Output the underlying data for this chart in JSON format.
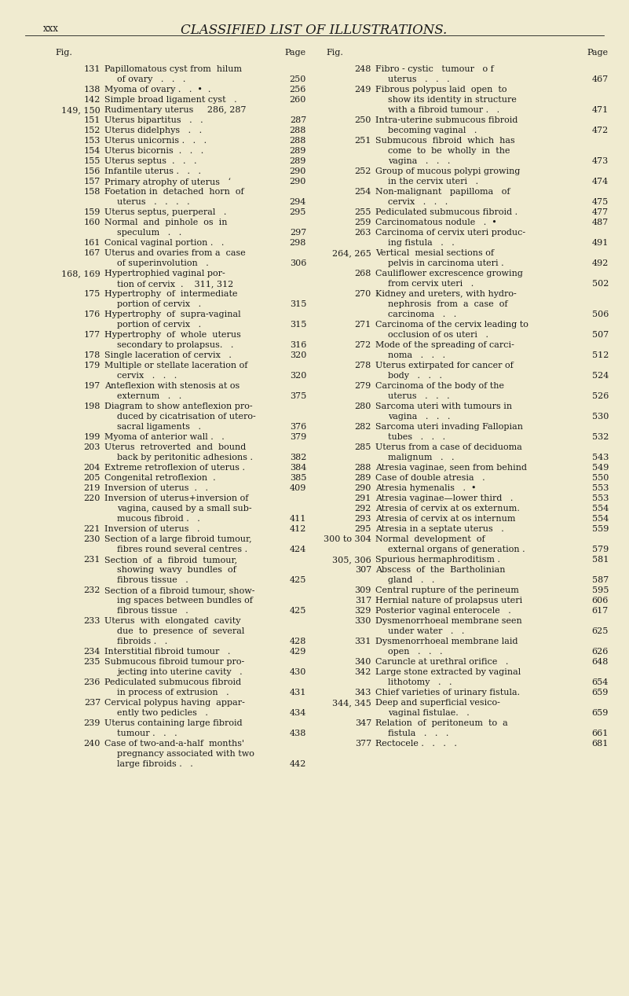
{
  "bg_color": "#f0ebd0",
  "header_left": "xxx",
  "header_center": "CLASSIFIED LIST OF ILLUSTRATIONS.",
  "text_color": "#1a1a1a",
  "col1_entries": [
    [
      "131",
      "Papillomatous cyst from  hilum\n    of ovary   .   .   . ",
      "250"
    ],
    [
      "138",
      "Myoma of ovary .   .  •  . ",
      "256"
    ],
    [
      "142",
      "Simple broad ligament cyst   . ",
      "260"
    ],
    [
      "149, 150",
      "Rudimentary uterus     286, 287",
      ""
    ],
    [
      "151",
      "Uterus bipartitus   .   . ",
      "287"
    ],
    [
      "152",
      "Uterus didelphys   .   . ",
      "288"
    ],
    [
      "153",
      "Uterus unicornis .   .   . ",
      "288"
    ],
    [
      "154",
      "Uterus bicornis  .   .   . ",
      "289"
    ],
    [
      "155",
      "Uterus septus  .   .   . ",
      "289"
    ],
    [
      "156",
      "Infantile uterus .   .   . ",
      "290"
    ],
    [
      "157",
      "Primary atrophy of uterus   ‘ ",
      "290"
    ],
    [
      "158",
      "Foetation in  detached  horn  of\n    uterus   .   .   .   . ",
      "294"
    ],
    [
      "159",
      "Uterus septus, puerperal   . ",
      "295"
    ],
    [
      "160",
      "Normal  and  pinhole  os  in\n    speculum   .   . ",
      "297"
    ],
    [
      "161",
      "Conical vaginal portion .   . ",
      "298"
    ],
    [
      "167",
      "Uterus and ovaries from a  case\n    of superinvolution   . ",
      "306"
    ],
    [
      "168, 169",
      "Hypertrophied vaginal por-\n    tion of cervix  .    311, 312",
      ""
    ],
    [
      "175",
      "Hypertrophy  of  intermediate\n    portion of cervix   . ",
      "315"
    ],
    [
      "176",
      "Hypertrophy  of  supra-vaginal\n    portion of cervix   . ",
      "315"
    ],
    [
      "177",
      "Hypertrophy  of  whole  uterus\n    secondary to prolapsus.   . ",
      "316"
    ],
    [
      "178",
      "Single laceration of cervix   . ",
      "320"
    ],
    [
      "179",
      "Multiple or stellate laceration of\n    cervix   .   .   . ",
      "320"
    ],
    [
      "197",
      "Anteflexion with stenosis at os\n    externum   .   . ",
      "375"
    ],
    [
      "198",
      "Diagram to show anteflexion pro-\n    duced by cicatrisation of utero-\n    sacral ligaments   . ",
      "376"
    ],
    [
      "199",
      "Myoma of anterior wall .   . ",
      "379"
    ],
    [
      "203",
      "Uterus  retroverted  and  bound\n    back by peritonitic adhesions . ",
      "382"
    ],
    [
      "204",
      "Extreme retroflexion of uterus . ",
      "384"
    ],
    [
      "205",
      "Congenital retroflexion  . ",
      "385"
    ],
    [
      "219",
      "Inversion of uterus  .   . ",
      "409"
    ],
    [
      "220",
      "Inversion of uterus+inversion of\n    vagina, caused by a small sub-\n    mucous fibroid .   . ",
      "411"
    ],
    [
      "221",
      "Inversion of uterus   . ",
      "412"
    ],
    [
      "230",
      "Section of a large fibroid tumour,\n    fibres round several centres . ",
      "424"
    ],
    [
      "231",
      "Section  of  a  fibroid  tumour,\n    showing  wavy  bundles  of\n    fibrous tissue   . ",
      "425"
    ],
    [
      "232",
      "Section of a fibroid tumour, show-\n    ing spaces between bundles of\n    fibrous tissue   . ",
      "425"
    ],
    [
      "233",
      "Uterus  with  elongated  cavity\n    due  to  presence  of  several\n    fibroids .   . ",
      "428"
    ],
    [
      "234",
      "Interstitial fibroid tumour   . ",
      "429"
    ],
    [
      "235",
      "Submucous fibroid tumour pro-\n    jecting into uterine cavity   . ",
      "430"
    ],
    [
      "236",
      "Pediculated submucous fibroid\n    in process of extrusion   . ",
      "431"
    ],
    [
      "237",
      "Cervical polypus having  appar-\n    ently two pedicles   . ",
      "434"
    ],
    [
      "239",
      "Uterus containing large fibroid\n    tumour .   .   . ",
      "438"
    ],
    [
      "240",
      "Case of two-and-a-half  months'\n    pregnancy associated with two\n    large fibroids .   . ",
      "442"
    ]
  ],
  "col2_entries": [
    [
      "248",
      "Fibro - cystic   tumour   o f\n    uterus   .   .   . ",
      "467"
    ],
    [
      "249",
      "Fibrous polypus laid  open  to\n    show its identity in structure\n    with a fibroid tumour .   . ",
      "471"
    ],
    [
      "250",
      "Intra-uterine submucous fibroid\n    becoming vaginal   . ",
      "472"
    ],
    [
      "251",
      "Submucous  fibroid  which  has\n    come  to  be  wholly  in  the\n    vagina   .   .   . ",
      "473"
    ],
    [
      "252",
      "Group of mucous polypi growing\n    in the cervix uteri   . ",
      "474"
    ],
    [
      "254",
      "Non-malignant   papilloma   of\n    cervix   .   .   . ",
      "475"
    ],
    [
      "255",
      "Pediculated submucous fibroid . ",
      "477"
    ],
    [
      "259",
      "Carcinomatous nodule   .  • ",
      "487"
    ],
    [
      "263",
      "Carcinoma of cervix uteri produc-\n    ing fistula   .   . ",
      "491"
    ],
    [
      "264, 265",
      "Vertical  mesial sections of\n    pelvis in carcinoma uteri . ",
      "492"
    ],
    [
      "268",
      "Cauliflower excrescence growing\n    from cervix uteri   . ",
      "502"
    ],
    [
      "270",
      "Kidney and ureters, with hydro-\n    nephrosis  from  a  case  of\n    carcinoma   .   . ",
      "506"
    ],
    [
      "271",
      "Carcinoma of the cervix leading to\n    occlusion of os uteri   . ",
      "507"
    ],
    [
      "272",
      "Mode of the spreading of carci-\n    noma   .   .   . ",
      "512"
    ],
    [
      "278",
      "Uterus extirpated for cancer of\n    body   .   .   . ",
      "524"
    ],
    [
      "279",
      "Carcinoma of the body of the\n    uterus   .   .   . ",
      "526"
    ],
    [
      "280",
      "Sarcoma uteri with tumours in\n    vagina   .   .   . ",
      "530"
    ],
    [
      "282",
      "Sarcoma uteri invading Fallopian\n    tubes   .   .   . ",
      "532"
    ],
    [
      "285",
      "Uterus from a case of deciduoma\n    malignum   .   . ",
      "543"
    ],
    [
      "288",
      "Atresia vaginae, seen from behind ",
      "549"
    ],
    [
      "289",
      "Case of double atresia   . ",
      "550"
    ],
    [
      "290",
      "Atresia hymenalis   .  • ",
      "553"
    ],
    [
      "291",
      "Atresia vaginae—lower third   . ",
      "553"
    ],
    [
      "292",
      "Atresia of cervix at os externum. ",
      "554"
    ],
    [
      "293",
      "Atresia of cervix at os internum ",
      "554"
    ],
    [
      "295",
      "Atresia in a septate uterus   . ",
      "559"
    ],
    [
      "300 to 304",
      "Normal  development  of\n    external organs of generation . ",
      "579"
    ],
    [
      "305, 306",
      "Spurious hermaphroditism . ",
      "581"
    ],
    [
      "307",
      "Abscess  of  the  Bartholinian\n    gland   .   . ",
      "587"
    ],
    [
      "309",
      "Central rupture of the perineum ",
      "595"
    ],
    [
      "317",
      "Hernial nature of prolapsus uteri ",
      "606"
    ],
    [
      "329",
      "Posterior vaginal enterocele   . ",
      "617"
    ],
    [
      "330",
      "Dysmenorrhoeal membrane seen\n    under water   .   . ",
      "625"
    ],
    [
      "331",
      "Dysmenorrhoeal membrane laid\n    open   .   .   . ",
      "626"
    ],
    [
      "340",
      "Caruncle at urethral orifice   . ",
      "648"
    ],
    [
      "342",
      "Large stone extracted by vaginal\n    lithotomy   .   . ",
      "654"
    ],
    [
      "343",
      "Chief varieties of urinary fistula. ",
      "659"
    ],
    [
      "344, 345",
      "Deep and superficial vesico-\n    vaginal fistulae.   . ",
      "659"
    ],
    [
      "347",
      "Relation  of  peritoneum  to  a\n    fistula   .   .   . ",
      "661"
    ],
    [
      "377",
      "Rectocele .   .   .   . ",
      "681"
    ]
  ]
}
